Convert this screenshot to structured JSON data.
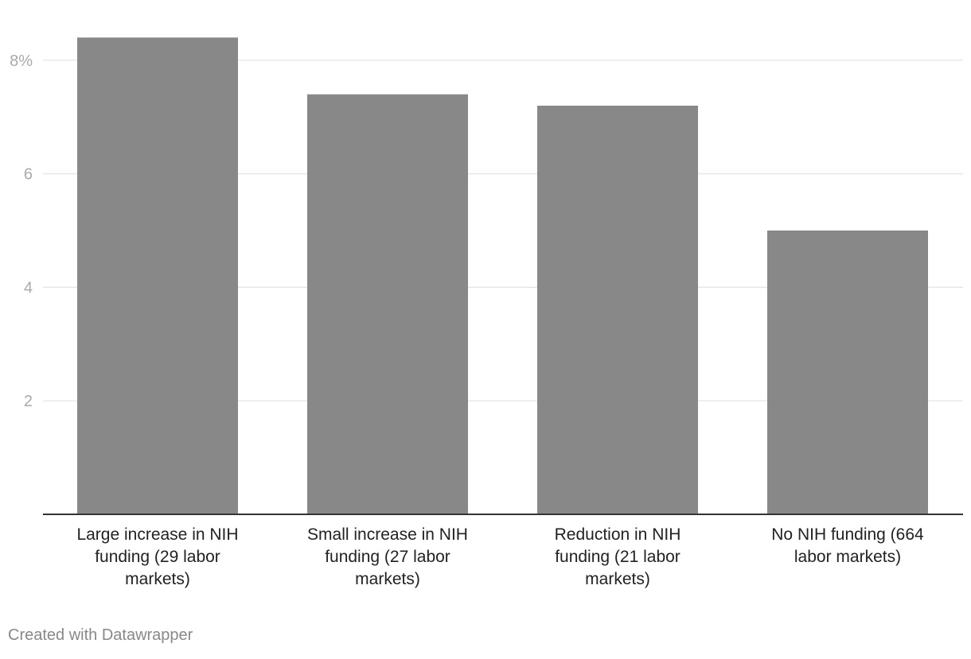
{
  "chart_data": {
    "type": "bar",
    "categories": [
      [
        "Large increase in NIH",
        "funding (29 labor",
        "markets)"
      ],
      [
        "Small increase in NIH",
        "funding (27 labor",
        "markets)"
      ],
      [
        "Reduction in NIH",
        "funding (21 labor",
        "markets)"
      ],
      [
        "No NIH funding (664",
        "labor markets)"
      ]
    ],
    "values": [
      8.4,
      7.4,
      7.2,
      5.0
    ],
    "y_ticks": [
      {
        "value": 2,
        "label": "2"
      },
      {
        "value": 4,
        "label": "4"
      },
      {
        "value": 6,
        "label": "6"
      },
      {
        "value": 8,
        "label": "8%"
      }
    ],
    "ylim": [
      0,
      8.4
    ],
    "grid": true,
    "colors": {
      "bar": "#888888",
      "grid": "#e3e3e3",
      "axis": "#333333",
      "tick_text": "#aaaaaa",
      "label_text": "#222222"
    }
  },
  "footer": {
    "credit": "Created with Datawrapper"
  }
}
